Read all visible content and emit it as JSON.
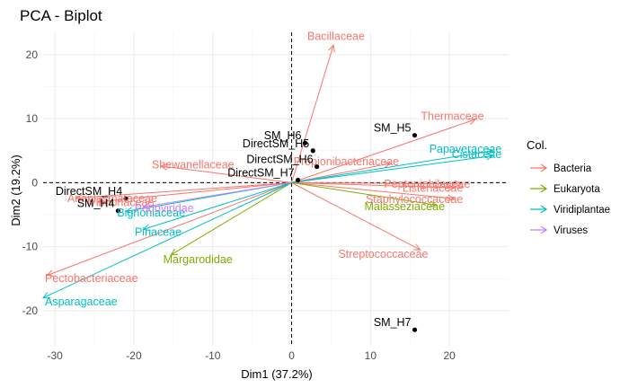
{
  "chart_data": {
    "type": "scatter",
    "title": "PCA - Biplot",
    "xlabel": "Dim1 (37.2%)",
    "ylabel": "Dim2 (19.2%)",
    "xlim": [
      -31.5,
      27.5
    ],
    "ylim": [
      -25.5,
      23.5
    ],
    "xticks": [
      -30,
      -20,
      -10,
      0,
      10,
      20
    ],
    "yticks": [
      -20,
      -10,
      0,
      10,
      20
    ],
    "xtick_labels": [
      "-30",
      "-20",
      "-10",
      "0",
      "10",
      "20"
    ],
    "ytick_labels": [
      "-20",
      "-10",
      "0",
      "10",
      "20"
    ],
    "grid": true,
    "reference_lines": {
      "x": 0,
      "y": 0
    },
    "legend": {
      "title": "Col.",
      "position": "right",
      "entries": [
        {
          "name": "Bacteria",
          "color": "#F8766D"
        },
        {
          "name": "Eukaryota",
          "color": "#7CAE00"
        },
        {
          "name": "Viridiplantae",
          "color": "#00BFC4"
        },
        {
          "name": "Viruses",
          "color": "#C77CFF"
        }
      ]
    },
    "points": [
      {
        "label": "SM_H6",
        "x": 1.7,
        "y": 6.2
      },
      {
        "label": "SM_H5",
        "x": 15.6,
        "y": 7.4
      },
      {
        "label": "DirectSM_H6",
        "x": 3.2,
        "y": 2.5
      },
      {
        "label": "DirectSM_H5",
        "x": 2.7,
        "y": 5.0
      },
      {
        "label": "DirectSM_H7",
        "x": 0.8,
        "y": 0.4
      },
      {
        "label": "DirectSM_H4",
        "x": -21.0,
        "y": -2.5
      },
      {
        "label": "SM_H4",
        "x": -22.0,
        "y": -4.4
      },
      {
        "label": "SM_H7",
        "x": 15.6,
        "y": -23.0
      }
    ],
    "arrows": [
      {
        "name": "Bacillaceae",
        "group": "Bacteria",
        "x": 5.3,
        "y": 21.5
      },
      {
        "name": "Thermaceae",
        "group": "Bacteria",
        "x": 23.3,
        "y": 9.9
      },
      {
        "name": "Shewanellaceae",
        "group": "Bacteria",
        "x": -16.6,
        "y": 2.6
      },
      {
        "name": "Anaplasmataceae",
        "group": "Bacteria",
        "x": -27.3,
        "y": -2.4
      },
      {
        "name": "Vibrionaceae",
        "group": "Bacteria",
        "x": -24.6,
        "y": -3.0
      },
      {
        "name": "Pectobacteriaceae",
        "group": "Bacteria",
        "x": -31.0,
        "y": -14.5
      },
      {
        "name": "Propionibacteriaceae",
        "group": "Bacteria",
        "x": 12.5,
        "y": 3.0
      },
      {
        "name": "Peptoniphilaceae",
        "group": "Bacteria",
        "x": 21.5,
        "y": -0.2
      },
      {
        "name": "Listeriaceae",
        "group": "Bacteria",
        "x": 20.6,
        "y": -0.8
      },
      {
        "name": "Staphylococcaceae",
        "group": "Bacteria",
        "x": 20.6,
        "y": -2.5
      },
      {
        "name": "Streptococcaceae",
        "group": "Bacteria",
        "x": 16.3,
        "y": -10.5
      },
      {
        "name": "Malasseziaceae",
        "group": "Eukaryota",
        "x": 18.3,
        "y": -3.5
      },
      {
        "name": "Margarodidae",
        "group": "Eukaryota",
        "x": -15.3,
        "y": -11.3
      },
      {
        "name": "Papaveraceae",
        "group": "Viridiplantae",
        "x": 25.5,
        "y": 5.0
      },
      {
        "name": "Cistaceae",
        "group": "Viridiplantae",
        "x": 25.5,
        "y": 4.2
      },
      {
        "name": "Bignoniaceae",
        "group": "Viridiplantae",
        "x": -21.0,
        "y": -4.5
      },
      {
        "name": "Pinaceae",
        "group": "Viridiplantae",
        "x": -18.8,
        "y": -7.3
      },
      {
        "name": "Asparagaceae",
        "group": "Viridiplantae",
        "x": -31.5,
        "y": -18.0
      },
      {
        "name": "Podoviridae",
        "group": "Viruses",
        "x": -18.8,
        "y": -3.8
      }
    ]
  }
}
